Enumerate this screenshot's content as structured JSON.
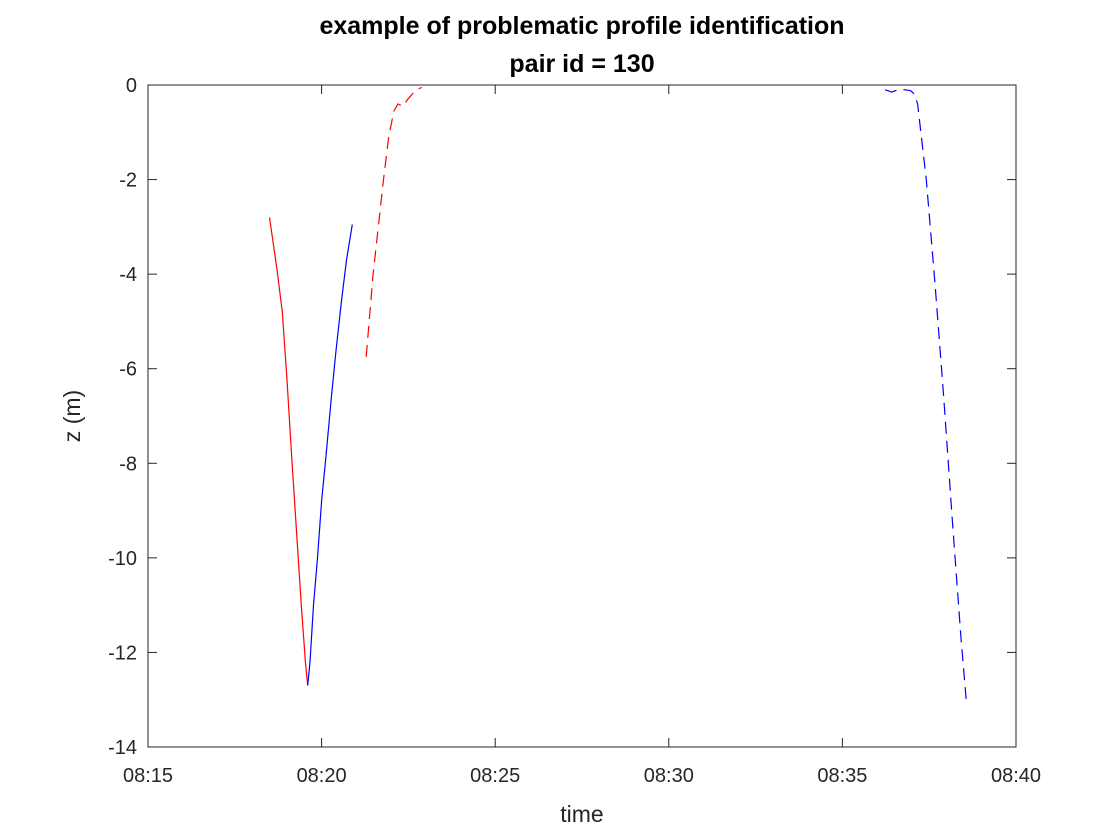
{
  "chart_data": {
    "type": "line",
    "title": "example of problematic profile identification",
    "subtitle": "pair id = 130",
    "xlabel": "time",
    "ylabel": "z (m)",
    "xlim": [
      "08:15",
      "08:40"
    ],
    "ylim": [
      -14,
      0
    ],
    "xticks": [
      "08:15",
      "08:20",
      "08:25",
      "08:30",
      "08:35",
      "08:40"
    ],
    "yticks": [
      "-14",
      "-12",
      "-10",
      "-8",
      "-6",
      "-4",
      "-2",
      "0"
    ],
    "grid": false,
    "legend": "none",
    "series": [
      {
        "color": "#ff0000",
        "style": "solid",
        "x": [
          "08:18:30",
          "08:18:43",
          "08:18:52",
          "08:19:00",
          "08:19:08",
          "08:19:17",
          "08:19:25",
          "08:19:32",
          "08:19:36"
        ],
        "y": [
          -2.8,
          -3.9,
          -4.8,
          -6.2,
          -7.8,
          -9.5,
          -11.0,
          -12.2,
          -12.7
        ]
      },
      {
        "color": "#0000ff",
        "style": "solid",
        "x": [
          "08:19:36",
          "08:19:40",
          "08:19:46",
          "08:19:53",
          "08:20:00",
          "08:20:08",
          "08:20:17",
          "08:20:25",
          "08:20:34",
          "08:20:43",
          "08:20:53"
        ],
        "y": [
          -12.7,
          -12.2,
          -11.0,
          -10.0,
          -8.8,
          -7.8,
          -6.6,
          -5.6,
          -4.6,
          -3.7,
          -2.95
        ]
      },
      {
        "color": "#ff0000",
        "style": "dashed",
        "x": [
          "08:21:17",
          "08:21:29",
          "08:21:38",
          "08:21:47",
          "08:21:56",
          "08:22:05",
          "08:22:12",
          "08:22:20",
          "08:22:29",
          "08:22:36",
          "08:22:44",
          "08:22:53"
        ],
        "y": [
          -5.75,
          -4.0,
          -3.0,
          -2.0,
          -1.1,
          -0.55,
          -0.4,
          -0.45,
          -0.3,
          -0.2,
          -0.1,
          -0.05
        ]
      },
      {
        "color": "#0000ff",
        "style": "dashed",
        "x": [
          "08:36:14",
          "08:36:25",
          "08:36:36",
          "08:36:47",
          "08:36:58",
          "08:37:05",
          "08:37:10",
          "08:37:25",
          "08:37:40",
          "08:37:55",
          "08:38:10",
          "08:38:25",
          "08:38:34"
        ],
        "y": [
          -0.1,
          -0.15,
          -0.1,
          -0.1,
          -0.12,
          -0.2,
          -0.4,
          -2.0,
          -4.2,
          -6.6,
          -9.2,
          -11.7,
          -13.0
        ]
      }
    ]
  }
}
